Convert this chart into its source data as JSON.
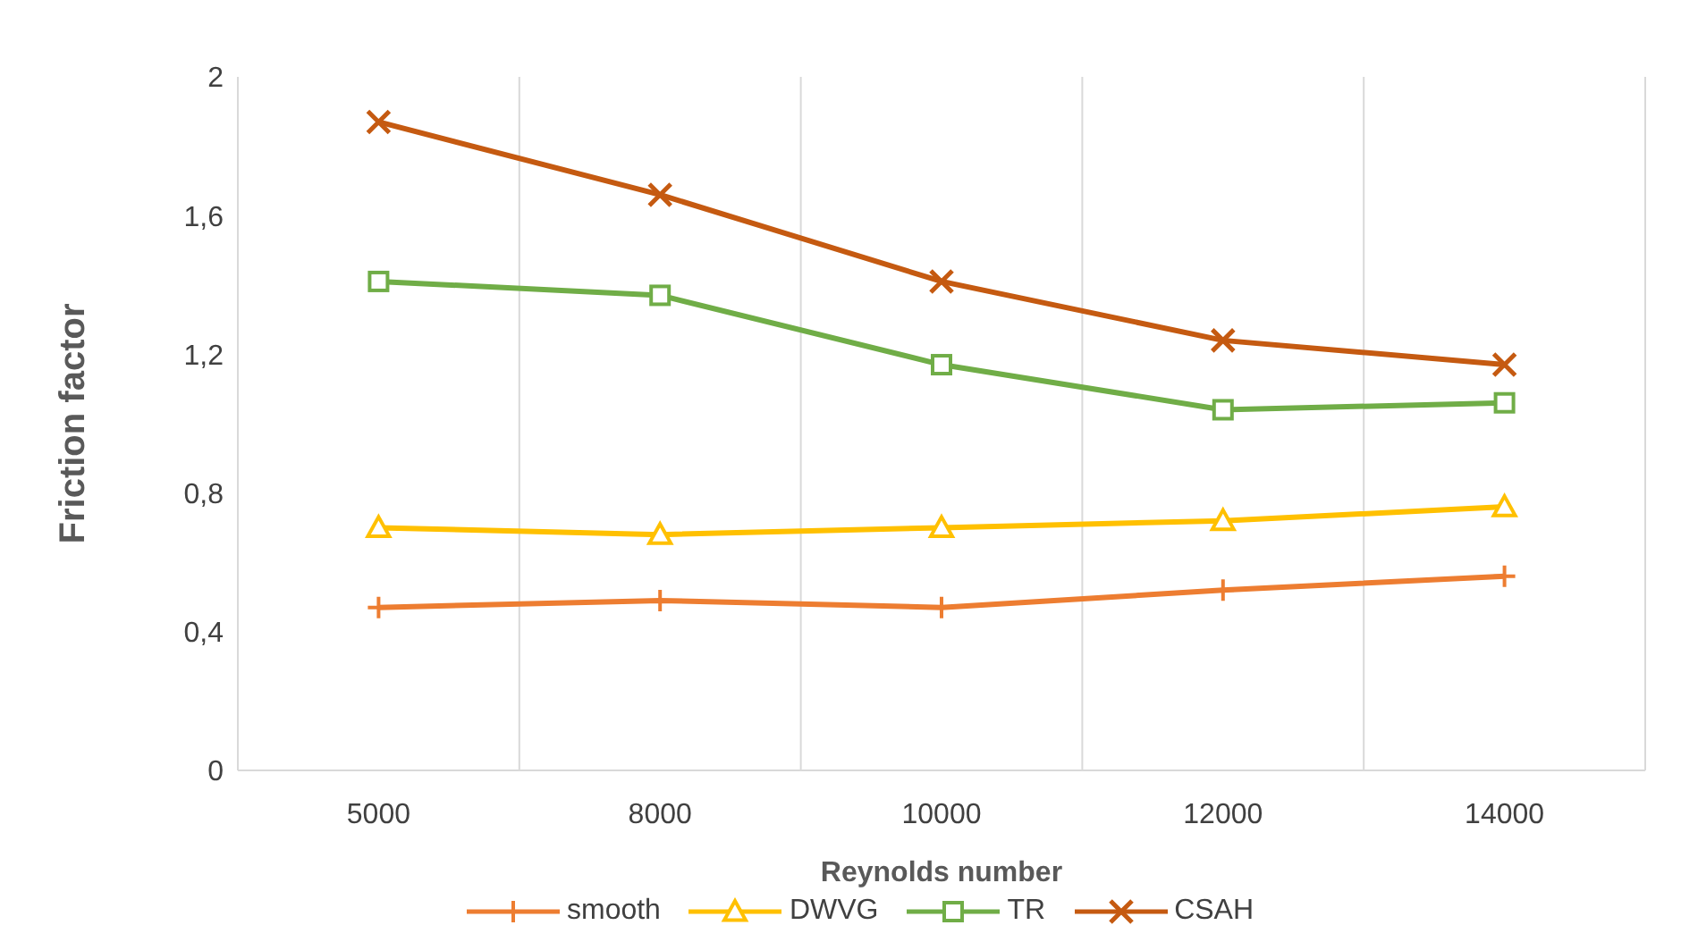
{
  "chart_data": {
    "type": "line",
    "xlabel": "Reynolds number",
    "ylabel": "Friction factor",
    "categories": [
      "5000",
      "8000",
      "10000",
      "12000",
      "14000"
    ],
    "series": [
      {
        "name": "smooth",
        "color": "#ed7d31",
        "marker": "plus",
        "values": [
          0.47,
          0.49,
          0.47,
          0.52,
          0.56
        ]
      },
      {
        "name": "DWVG",
        "color": "#ffc000",
        "marker": "triangle",
        "values": [
          0.7,
          0.68,
          0.7,
          0.72,
          0.76
        ]
      },
      {
        "name": "TR",
        "color": "#70ad47",
        "marker": "square",
        "values": [
          1.41,
          1.37,
          1.17,
          1.04,
          1.06
        ]
      },
      {
        "name": "CSAH",
        "color": "#c55a11",
        "marker": "cross",
        "values": [
          1.87,
          1.66,
          1.41,
          1.24,
          1.17
        ]
      }
    ],
    "ylim": [
      0,
      2
    ],
    "yticks": [
      0,
      {
        "value": 0.4,
        "label": "0,4"
      },
      {
        "value": 0.8,
        "label": "0,8"
      },
      {
        "value": 1.2,
        "label": "1,2"
      },
      {
        "value": 1.6,
        "label": "1,6"
      },
      2
    ],
    "grid": "x",
    "legend": "bottom",
    "line_style": "solid"
  }
}
